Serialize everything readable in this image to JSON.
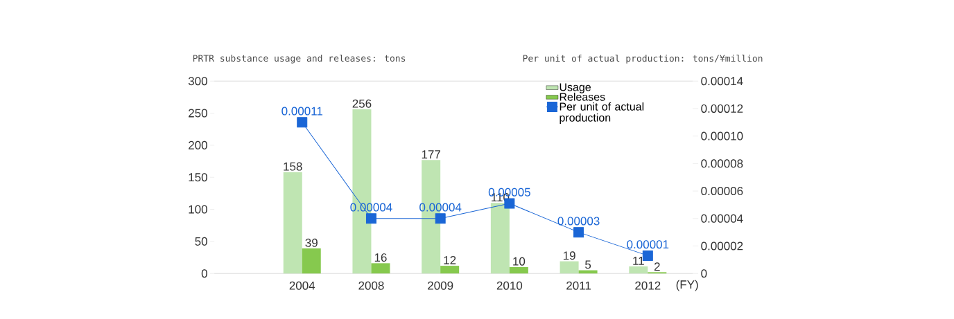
{
  "chart_data": {
    "type": "bar",
    "xlabel": "(FY)",
    "ylabel": "PRTR substance usage and releases: tons",
    "y2label": "Per unit of actual production: tons/¥million",
    "categories": [
      "2004",
      "2008",
      "2009",
      "2010",
      "2011",
      "2012"
    ],
    "series": [
      {
        "name": "Usage",
        "color": "#bfe5b2",
        "values": [
          158,
          256,
          177,
          110,
          19,
          11
        ],
        "value_labels": [
          "158",
          "256",
          "177",
          "110",
          "19",
          "11"
        ]
      },
      {
        "name": "Releases",
        "color": "#86c94e",
        "values": [
          39,
          16,
          12,
          10,
          5,
          2
        ],
        "value_labels": [
          "39",
          "16",
          "12",
          "10",
          "5",
          "2"
        ]
      },
      {
        "name": "Per unit of actual production",
        "type": "line",
        "axis": "y2",
        "color": "#1a66d6",
        "marker": "square",
        "values": [
          0.00011,
          4e-05,
          4e-05,
          5.1e-05,
          3e-05,
          1.3e-05
        ],
        "value_labels": [
          "0.00011",
          "0.00004",
          "0.00004",
          "0.00005",
          "0.00003",
          "0.00001"
        ]
      }
    ],
    "ylim": [
      0,
      300
    ],
    "yticks": [
      0,
      50,
      100,
      150,
      200,
      250,
      300
    ],
    "y2lim": [
      0,
      0.00014
    ],
    "y2ticks": [
      0,
      {
        "value": 2e-05,
        "label": "0.00002"
      },
      {
        "value": 4e-05,
        "label": "0.00004"
      },
      {
        "value": 6e-05,
        "label": "0.00006"
      },
      {
        "value": 8e-05,
        "label": "0.00008"
      },
      {
        "value": 0.0001,
        "label": "0.00010"
      },
      {
        "value": 0.00012,
        "label": "0.00012"
      },
      {
        "value": 0.00014,
        "label": "0.00014"
      }
    ],
    "legend": "top right"
  }
}
